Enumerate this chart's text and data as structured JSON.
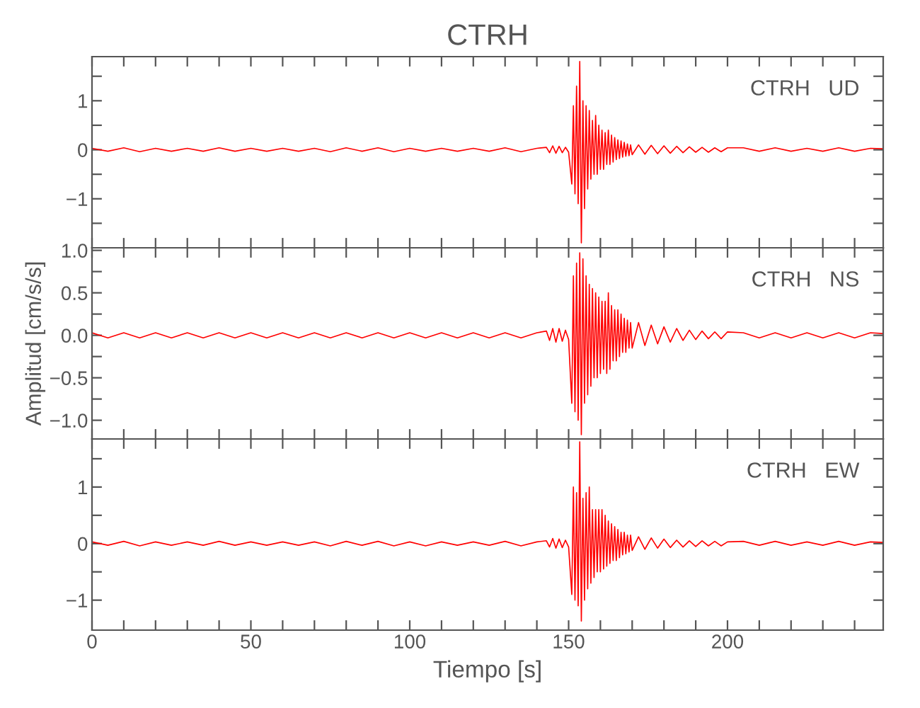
{
  "chart_data": [
    {
      "type": "line",
      "title": "CTRH",
      "annotations": [
        "CTRH   UD"
      ],
      "tick_labels": "y",
      "legend": false,
      "grid": false,
      "x": [
        0,
        5,
        10,
        15,
        20,
        25,
        30,
        35,
        40,
        45,
        50,
        55,
        60,
        65,
        70,
        75,
        80,
        85,
        90,
        95,
        100,
        105,
        110,
        115,
        120,
        125,
        130,
        135,
        140,
        143,
        144,
        145,
        146,
        147,
        148,
        149,
        150,
        151,
        151.5,
        152,
        152.5,
        153,
        153.5,
        154,
        154.5,
        155,
        155.5,
        156,
        156.5,
        157,
        157.5,
        158,
        158.5,
        159,
        159.5,
        160,
        160.5,
        161,
        161.5,
        162,
        162.5,
        163,
        163.5,
        164,
        164.5,
        165,
        165.5,
        166,
        166.5,
        167,
        167.5,
        168,
        168.5,
        169,
        169.5,
        170,
        172,
        174,
        176,
        178,
        180,
        182,
        184,
        186,
        188,
        190,
        192,
        194,
        196,
        198,
        200,
        205,
        210,
        215,
        220,
        225,
        230,
        235,
        240,
        245,
        249
      ],
      "series": [
        {
          "color": "#ff0000",
          "values": [
            0.03,
            -0.03,
            0.04,
            -0.04,
            0.03,
            -0.03,
            0.03,
            -0.03,
            0.04,
            -0.03,
            0.03,
            -0.03,
            0.03,
            -0.03,
            0.03,
            -0.04,
            0.04,
            -0.03,
            0.04,
            -0.04,
            0.03,
            -0.03,
            0.03,
            -0.03,
            0.03,
            -0.03,
            0.04,
            -0.04,
            0.03,
            0.05,
            -0.06,
            0.08,
            -0.07,
            0.07,
            -0.06,
            0.05,
            -0.05,
            -0.7,
            0.9,
            -0.9,
            1.3,
            -1.1,
            1.8,
            -1.9,
            1.0,
            -1.2,
            0.9,
            -0.8,
            0.8,
            -0.6,
            0.6,
            -0.5,
            0.7,
            -0.5,
            0.5,
            -0.4,
            0.4,
            -0.4,
            0.35,
            -0.3,
            0.4,
            -0.3,
            0.3,
            -0.25,
            0.25,
            -0.2,
            0.2,
            -0.18,
            0.18,
            -0.15,
            0.15,
            -0.13,
            0.12,
            -0.12,
            0.1,
            -0.1,
            0.1,
            -0.09,
            0.09,
            -0.08,
            0.08,
            -0.07,
            0.07,
            -0.06,
            0.06,
            -0.05,
            0.05,
            -0.05,
            0.04,
            -0.04,
            0.04,
            0.04,
            -0.03,
            0.04,
            -0.03,
            0.03,
            -0.03,
            0.04,
            -0.03,
            0.03,
            0.02
          ]
        }
      ],
      "xlim": [
        0,
        249
      ],
      "ylim": [
        -2.0,
        1.9
      ],
      "xticks": [
        0,
        {
          "value": 10,
          "label": null
        },
        {
          "value": 20,
          "label": null
        },
        {
          "value": 30,
          "label": null
        },
        {
          "value": 40,
          "label": null
        },
        50,
        {
          "value": 60,
          "label": null
        },
        {
          "value": 70,
          "label": null
        },
        {
          "value": 80,
          "label": null
        },
        {
          "value": 90,
          "label": null
        },
        100,
        {
          "value": 110,
          "label": null
        },
        {
          "value": 120,
          "label": null
        },
        {
          "value": 130,
          "label": null
        },
        {
          "value": 140,
          "label": null
        },
        150,
        {
          "value": 160,
          "label": null
        },
        {
          "value": 170,
          "label": null
        },
        {
          "value": 180,
          "label": null
        },
        {
          "value": 190,
          "label": null
        },
        200,
        {
          "value": 210,
          "label": null
        },
        {
          "value": 220,
          "label": null
        },
        {
          "value": 230,
          "label": null
        },
        {
          "value": 240,
          "label": null
        }
      ],
      "yticks": [
        {
          "value": -1.5,
          "label": null
        },
        {
          "value": -1,
          "label": "−1"
        },
        {
          "value": -0.5,
          "label": null
        },
        0,
        {
          "value": 0.5,
          "label": null
        },
        1,
        {
          "value": 1.5,
          "label": null
        }
      ]
    },
    {
      "type": "line",
      "ylabel": "Amplitud [cm/s/s]",
      "annotations": [
        "CTRH   NS"
      ],
      "tick_labels": "y",
      "legend": false,
      "grid": false,
      "x": [
        0,
        5,
        10,
        15,
        20,
        25,
        30,
        35,
        40,
        45,
        50,
        55,
        60,
        65,
        70,
        75,
        80,
        85,
        90,
        95,
        100,
        105,
        110,
        115,
        120,
        125,
        130,
        135,
        140,
        143,
        144,
        145,
        146,
        147,
        148,
        149,
        150,
        151,
        151.5,
        152,
        152.5,
        153,
        153.5,
        154,
        154.5,
        155,
        155.5,
        156,
        156.5,
        157,
        157.5,
        158,
        158.5,
        159,
        159.5,
        160,
        160.5,
        161,
        161.5,
        162,
        162.5,
        163,
        163.5,
        164,
        164.5,
        165,
        165.5,
        166,
        166.5,
        167,
        167.5,
        168,
        168.5,
        169,
        169.5,
        170,
        172,
        174,
        176,
        178,
        180,
        182,
        184,
        186,
        188,
        190,
        192,
        194,
        196,
        198,
        200,
        205,
        210,
        215,
        220,
        225,
        230,
        235,
        240,
        245,
        249
      ],
      "series": [
        {
          "color": "#ff0000",
          "values": [
            0.03,
            -0.03,
            0.03,
            -0.03,
            0.03,
            -0.03,
            0.03,
            -0.03,
            0.03,
            -0.03,
            0.03,
            -0.03,
            0.03,
            -0.03,
            0.03,
            -0.03,
            0.03,
            -0.03,
            0.03,
            -0.03,
            0.03,
            -0.03,
            0.03,
            -0.03,
            0.03,
            -0.03,
            0.03,
            -0.03,
            0.03,
            0.05,
            -0.06,
            0.08,
            -0.08,
            0.08,
            -0.07,
            0.06,
            -0.05,
            -0.8,
            0.7,
            -0.9,
            0.85,
            -1.0,
            0.97,
            -1.17,
            0.9,
            -0.8,
            0.7,
            -0.7,
            0.6,
            -0.6,
            0.55,
            -0.5,
            0.5,
            -0.5,
            0.45,
            -0.45,
            0.4,
            -0.4,
            0.4,
            -0.45,
            0.5,
            -0.4,
            0.35,
            -0.3,
            0.3,
            -0.3,
            0.3,
            -0.25,
            0.25,
            -0.2,
            0.2,
            -0.2,
            0.18,
            -0.15,
            0.15,
            -0.15,
            0.15,
            -0.12,
            0.12,
            -0.1,
            0.1,
            -0.08,
            0.08,
            -0.06,
            0.06,
            -0.05,
            0.05,
            -0.04,
            0.04,
            -0.04,
            0.04,
            0.03,
            -0.03,
            0.03,
            -0.03,
            0.03,
            -0.03,
            0.03,
            -0.03,
            0.03,
            0.02
          ]
        }
      ],
      "xlim": [
        0,
        249
      ],
      "ylim": [
        -1.22,
        1.03
      ],
      "xticks": [
        0,
        {
          "value": 10,
          "label": null
        },
        {
          "value": 20,
          "label": null
        },
        {
          "value": 30,
          "label": null
        },
        {
          "value": 40,
          "label": null
        },
        50,
        {
          "value": 60,
          "label": null
        },
        {
          "value": 70,
          "label": null
        },
        {
          "value": 80,
          "label": null
        },
        {
          "value": 90,
          "label": null
        },
        100,
        {
          "value": 110,
          "label": null
        },
        {
          "value": 120,
          "label": null
        },
        {
          "value": 130,
          "label": null
        },
        {
          "value": 140,
          "label": null
        },
        150,
        {
          "value": 160,
          "label": null
        },
        {
          "value": 170,
          "label": null
        },
        {
          "value": 180,
          "label": null
        },
        {
          "value": 190,
          "label": null
        },
        200,
        {
          "value": 210,
          "label": null
        },
        {
          "value": 220,
          "label": null
        },
        {
          "value": 230,
          "label": null
        },
        {
          "value": 240,
          "label": null
        }
      ],
      "yticks": [
        {
          "value": -1.0,
          "label": "−1.0"
        },
        {
          "value": -0.75,
          "label": null
        },
        {
          "value": -0.5,
          "label": "−0.5"
        },
        {
          "value": -0.25,
          "label": null
        },
        {
          "value": 0,
          "label": "0.0"
        },
        {
          "value": 0.25,
          "label": null
        },
        {
          "value": 0.5,
          "label": "0.5"
        },
        {
          "value": 0.75,
          "label": null
        },
        {
          "value": 1.0,
          "label": "1.0"
        }
      ]
    },
    {
      "type": "line",
      "xlabel": "Tiempo [s]",
      "annotations": [
        "CTRH   EW"
      ],
      "legend": false,
      "grid": false,
      "x": [
        0,
        5,
        10,
        15,
        20,
        25,
        30,
        35,
        40,
        45,
        50,
        55,
        60,
        65,
        70,
        75,
        80,
        85,
        90,
        95,
        100,
        105,
        110,
        115,
        120,
        125,
        130,
        135,
        140,
        143,
        144,
        145,
        146,
        147,
        148,
        149,
        150,
        151,
        151.5,
        152,
        152.5,
        153,
        153.5,
        154,
        154.5,
        155,
        155.5,
        156,
        156.5,
        157,
        157.5,
        158,
        158.5,
        159,
        159.5,
        160,
        160.5,
        161,
        161.5,
        162,
        162.5,
        163,
        163.5,
        164,
        164.5,
        165,
        165.5,
        166,
        166.5,
        167,
        167.5,
        168,
        168.5,
        169,
        169.5,
        170,
        172,
        174,
        176,
        178,
        180,
        182,
        184,
        186,
        188,
        190,
        192,
        194,
        196,
        198,
        200,
        205,
        210,
        215,
        220,
        225,
        230,
        235,
        240,
        245,
        249
      ],
      "series": [
        {
          "color": "#ff0000",
          "values": [
            0.03,
            -0.03,
            0.04,
            -0.04,
            0.03,
            -0.03,
            0.03,
            -0.03,
            0.04,
            -0.03,
            0.03,
            -0.03,
            0.03,
            -0.03,
            0.03,
            -0.04,
            0.04,
            -0.03,
            0.04,
            -0.04,
            0.03,
            -0.04,
            0.03,
            -0.03,
            0.03,
            -0.03,
            0.04,
            -0.04,
            0.03,
            0.05,
            -0.06,
            0.09,
            -0.08,
            0.08,
            -0.07,
            0.06,
            -0.06,
            -0.9,
            1.0,
            -1.0,
            0.9,
            -1.1,
            1.8,
            -1.37,
            0.8,
            -1.0,
            0.9,
            -0.8,
            1.0,
            -0.7,
            0.6,
            -0.6,
            0.6,
            -0.5,
            0.6,
            -0.5,
            0.6,
            -0.45,
            0.5,
            -0.4,
            0.4,
            -0.35,
            0.35,
            -0.3,
            0.3,
            -0.3,
            0.25,
            -0.25,
            0.2,
            -0.2,
            0.2,
            -0.18,
            0.15,
            -0.15,
            0.15,
            -0.12,
            0.12,
            -0.1,
            0.1,
            -0.08,
            0.08,
            -0.07,
            0.06,
            -0.06,
            0.05,
            -0.05,
            0.05,
            -0.04,
            0.04,
            -0.04,
            0.03,
            0.04,
            -0.03,
            0.04,
            -0.03,
            0.03,
            -0.03,
            0.04,
            -0.03,
            0.03,
            0.02
          ]
        }
      ],
      "xlim": [
        0,
        249
      ],
      "ylim": [
        -1.53,
        1.85
      ],
      "xticks": [
        0,
        {
          "value": 10,
          "label": null
        },
        {
          "value": 20,
          "label": null
        },
        {
          "value": 30,
          "label": null
        },
        {
          "value": 40,
          "label": null
        },
        50,
        {
          "value": 60,
          "label": null
        },
        {
          "value": 70,
          "label": null
        },
        {
          "value": 80,
          "label": null
        },
        {
          "value": 90,
          "label": null
        },
        100,
        {
          "value": 110,
          "label": null
        },
        {
          "value": 120,
          "label": null
        },
        {
          "value": 130,
          "label": null
        },
        {
          "value": 140,
          "label": null
        },
        150,
        {
          "value": 160,
          "label": null
        },
        {
          "value": 170,
          "label": null
        },
        {
          "value": 180,
          "label": null
        },
        {
          "value": 190,
          "label": null
        },
        200,
        {
          "value": 210,
          "label": null
        },
        {
          "value": 220,
          "label": null
        },
        {
          "value": 230,
          "label": null
        },
        {
          "value": 240,
          "label": null
        }
      ],
      "yticks": [
        {
          "value": -1,
          "label": "−1"
        },
        {
          "value": -0.5,
          "label": null
        },
        0,
        {
          "value": 0.5,
          "label": null
        },
        1,
        {
          "value": 1.5,
          "label": null
        }
      ]
    }
  ]
}
